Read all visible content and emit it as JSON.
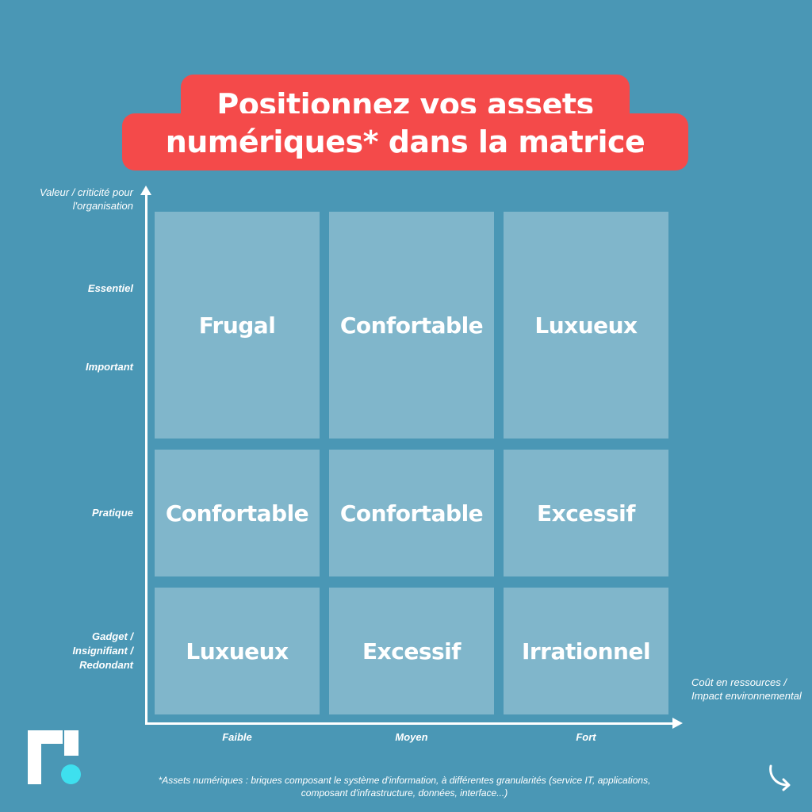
{
  "title": {
    "line1": "Positionnez vos assets",
    "line2": "numériques* dans la matrice"
  },
  "y_axis": {
    "title": "Valeur / criticité pour l'organisation",
    "levels": [
      "Essentiel",
      "Important",
      "Pratique",
      "Gadget / Insignifiant / Redondant"
    ]
  },
  "x_axis": {
    "title": "Coût en ressources / Impact environnemental",
    "levels": [
      "Faible",
      "Moyen",
      "Fort"
    ]
  },
  "matrix": {
    "rows": [
      [
        "Frugal",
        "Confortable",
        "Luxueux"
      ],
      [
        "Confortable",
        "Confortable",
        "Excessif"
      ],
      [
        "Luxueux",
        "Excessif",
        "Irrationnel"
      ]
    ]
  },
  "footnote": "*Assets numériques : briques composant le système d'information, à différentes granularités  (service IT, applications, composant d'infrastructure, données, interface...)",
  "icons": {
    "logo": "r-logo-icon",
    "next": "curved-arrow-icon"
  },
  "colors": {
    "background": "#4a97b5",
    "title_background": "#f44a4a",
    "cell": "#80b6cb",
    "logo_dot": "#3ee0ef"
  }
}
